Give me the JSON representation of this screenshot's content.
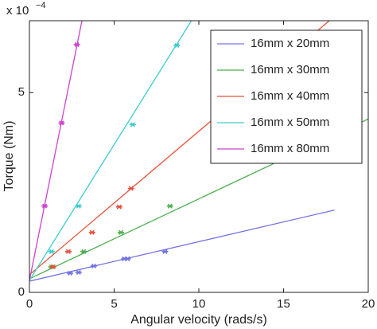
{
  "chart_data": {
    "type": "scatter",
    "xlabel": "Angular velocity (rads/s)",
    "ylabel": "Torque (Nm)",
    "y_multiplier_base": "x 10",
    "y_multiplier_exponent": "−4",
    "xlim": [
      0,
      20
    ],
    "xticks": [
      0,
      5,
      10,
      15,
      20
    ],
    "ylim": [
      0,
      6.8
    ],
    "yticks": [
      0,
      5
    ],
    "legend": "upper right",
    "series": [
      {
        "name": "16mm x 20mm",
        "color": "#7373e6",
        "x": [
          2.4,
          2.9,
          3.8,
          5.6,
          5.8,
          8.0
        ],
        "values": [
          0.48,
          0.5,
          0.66,
          0.84,
          0.84,
          1.02
        ],
        "fit": {
          "x": [
            0,
            18
          ],
          "y": [
            0.28,
            2.06
          ]
        }
      },
      {
        "name": "16mm x 30mm",
        "color": "#4fb04f",
        "x": [
          1.3,
          3.2,
          5.4,
          8.3
        ],
        "values": [
          0.64,
          1.02,
          1.5,
          2.16
        ],
        "fit": {
          "x": [
            0,
            20
          ],
          "y": [
            0.34,
            4.34
          ]
        }
      },
      {
        "name": "16mm x 40mm",
        "color": "#e8503a",
        "x": [
          1.4,
          2.3,
          3.7,
          5.3,
          6.0
        ],
        "values": [
          0.64,
          1.02,
          1.5,
          2.14,
          2.6
        ],
        "fit": {
          "x": [
            0,
            17.7
          ],
          "y": [
            0.44,
            6.8
          ]
        }
      },
      {
        "name": "16mm x 50mm",
        "color": "#3ccccc",
        "x": [
          1.3,
          2.9,
          6.1,
          8.7
        ],
        "values": [
          1.02,
          2.16,
          4.2,
          6.18
        ],
        "fit": {
          "x": [
            0,
            9.56
          ],
          "y": [
            0.3,
            6.8
          ]
        }
      },
      {
        "name": "16mm x 80mm",
        "color": "#cc44cc",
        "x": [
          0.9,
          1.9,
          2.8
        ],
        "values": [
          2.16,
          4.24,
          6.2
        ],
        "fit": {
          "x": [
            0,
            3.1
          ],
          "y": [
            0.3,
            6.8
          ]
        }
      }
    ]
  }
}
